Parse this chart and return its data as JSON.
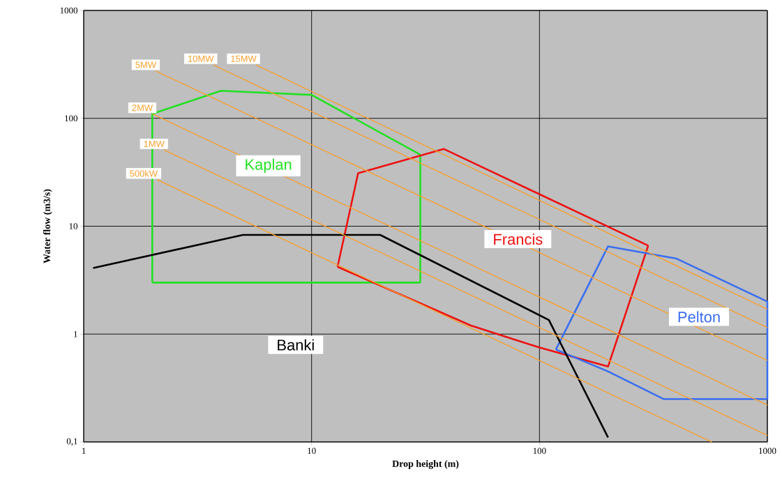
{
  "chart_data": {
    "type": "line",
    "xlabel": "Drop height (m)",
    "ylabel": "Water flow (m3/s)",
    "log": "xy",
    "xlim": [
      1,
      1000
    ],
    "ylim": [
      0.1,
      1000
    ],
    "xticks": [
      1,
      10,
      100,
      1000
    ],
    "yticks": [
      {
        "value": 0.1,
        "label": "0,1"
      },
      1,
      10,
      100,
      1000
    ],
    "grid": true,
    "series": [
      {
        "name": "Kaplan",
        "color": "#22e022",
        "x": [
          2,
          2,
          4,
          10,
          30,
          30
        ],
        "values": [
          3,
          110,
          180,
          165,
          46,
          3
        ]
      },
      {
        "color": "#22e022",
        "x": [
          2,
          30
        ],
        "values": [
          3,
          3
        ]
      },
      {
        "name": "Francis",
        "color": "#ee1111",
        "x": [
          13,
          16,
          38,
          300
        ],
        "values": [
          4.2,
          31,
          52,
          6.6
        ]
      },
      {
        "color": "#ee1111",
        "x": [
          13,
          50,
          100,
          200,
          300
        ],
        "values": [
          4.2,
          1.2,
          0.75,
          0.5,
          6.6
        ]
      },
      {
        "name": "Pelton",
        "color": "#3a6ef0",
        "x": [
          118,
          200,
          400,
          1000,
          1000
        ],
        "values": [
          0.72,
          6.5,
          5,
          2,
          0.25
        ]
      },
      {
        "color": "#3a6ef0",
        "x": [
          118,
          200,
          350,
          1000
        ],
        "values": [
          0.72,
          0.45,
          0.25,
          0.25
        ]
      },
      {
        "name": "Banki",
        "color": "#000000",
        "x": [
          1.1,
          5,
          20,
          110,
          200
        ],
        "values": [
          4.1,
          8.3,
          8.3,
          1.35,
          0.11
        ]
      },
      {
        "name": "500kW",
        "color": "#f5a030",
        "x": [
          2.1,
          570
        ],
        "values": [
          27,
          0.1
        ]
      },
      {
        "name": "1MW",
        "color": "#f5a030",
        "x": [
          2.25,
          1000
        ],
        "values": [
          51,
          0.115
        ]
      },
      {
        "name": "2MW",
        "color": "#f5a030",
        "x": [
          2,
          1000
        ],
        "values": [
          110,
          0.22
        ]
      },
      {
        "name": "5MW",
        "color": "#f5a030",
        "x": [
          2.07,
          1000
        ],
        "values": [
          275,
          0.57
        ]
      },
      {
        "name": "10MW",
        "color": "#f5a030",
        "x": [
          3.7,
          1000
        ],
        "values": [
          313,
          1.15
        ]
      },
      {
        "name": "15MW",
        "color": "#f5a030",
        "x": [
          5.7,
          1000
        ],
        "values": [
          313,
          1.7
        ]
      }
    ]
  }
}
